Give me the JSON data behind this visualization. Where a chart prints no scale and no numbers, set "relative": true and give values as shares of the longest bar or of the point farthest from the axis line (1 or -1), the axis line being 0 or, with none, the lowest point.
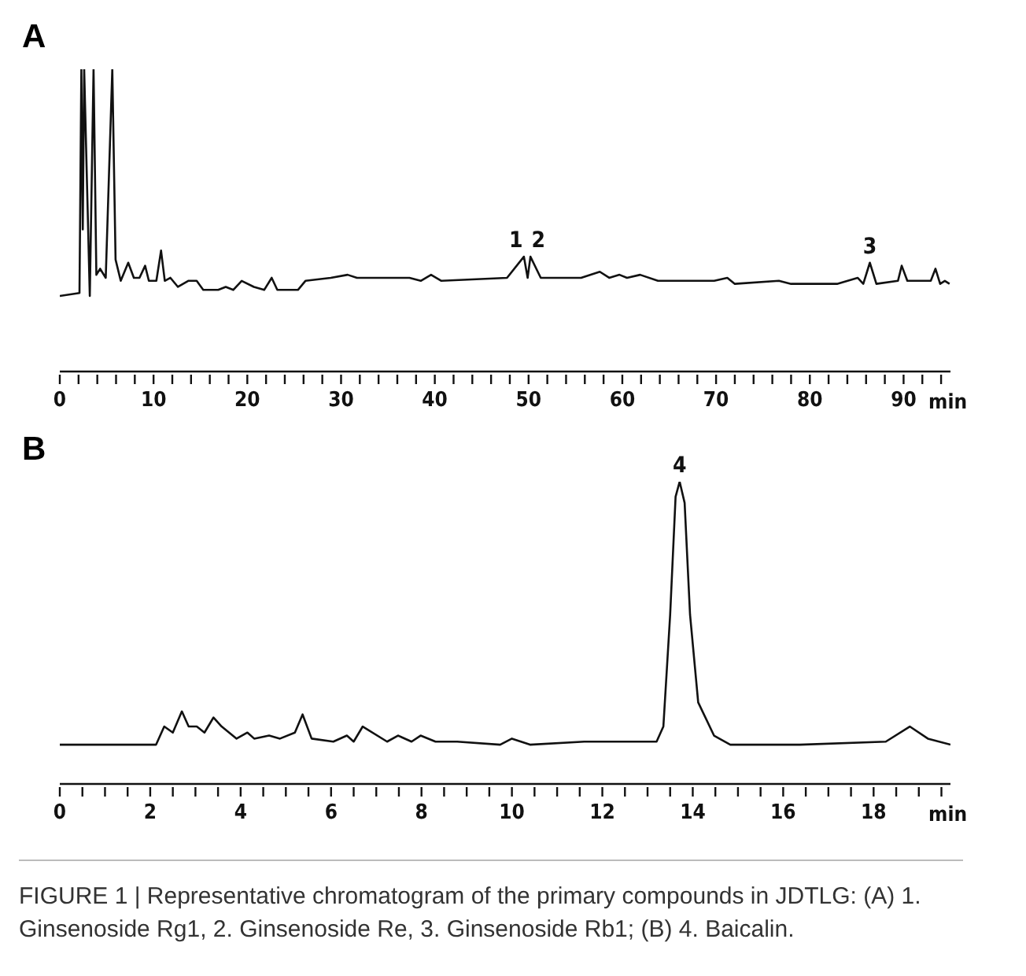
{
  "chart_data": [
    {
      "type": "line",
      "title": "A",
      "xlabel": "min",
      "relative": true,
      "xlim": [
        0,
        95
      ],
      "xticks": [
        0,
        {
          "value": 2,
          "label": null
        },
        {
          "value": 4,
          "label": null
        },
        {
          "value": 6,
          "label": null
        },
        {
          "value": 8,
          "label": null
        },
        10,
        {
          "value": 12,
          "label": null
        },
        {
          "value": 14,
          "label": null
        },
        {
          "value": 16,
          "label": null
        },
        {
          "value": 18,
          "label": null
        },
        20,
        {
          "value": 22,
          "label": null
        },
        {
          "value": 24,
          "label": null
        },
        {
          "value": 26,
          "label": null
        },
        {
          "value": 28,
          "label": null
        },
        30,
        {
          "value": 32,
          "label": null
        },
        {
          "value": 34,
          "label": null
        },
        {
          "value": 36,
          "label": null
        },
        {
          "value": 38,
          "label": null
        },
        40,
        {
          "value": 42,
          "label": null
        },
        {
          "value": 44,
          "label": null
        },
        {
          "value": 46,
          "label": null
        },
        {
          "value": 48,
          "label": null
        },
        50,
        {
          "value": 52,
          "label": null
        },
        {
          "value": 54,
          "label": null
        },
        {
          "value": 56,
          "label": null
        },
        {
          "value": 58,
          "label": null
        },
        60,
        {
          "value": 62,
          "label": null
        },
        {
          "value": 64,
          "label": null
        },
        {
          "value": 66,
          "label": null
        },
        {
          "value": 68,
          "label": null
        },
        70,
        {
          "value": 72,
          "label": null
        },
        {
          "value": 74,
          "label": null
        },
        {
          "value": 76,
          "label": null
        },
        {
          "value": 78,
          "label": null
        },
        80,
        {
          "value": 82,
          "label": null
        },
        {
          "value": 84,
          "label": null
        },
        {
          "value": 86,
          "label": null
        },
        {
          "value": 88,
          "label": null
        },
        90,
        {
          "value": 92,
          "label": null
        },
        {
          "value": 94,
          "label": null
        }
      ],
      "series": [
        {
          "color": "#111111",
          "x": [
            0,
            2.1,
            2.3,
            2.45,
            2.6,
            3.2,
            3.6,
            3.9,
            4.3,
            4.9,
            5.6,
            5.95,
            6.5,
            7.3,
            7.9,
            8.5,
            9.1,
            9.5,
            10.3,
            10.8,
            11.2,
            11.8,
            12.6,
            13.7,
            14.6,
            15.3,
            16.9,
            17.7,
            18.5,
            19.4,
            20.7,
            21.8,
            22.6,
            23.2,
            25.4,
            26.2,
            28.9,
            30.7,
            31.7,
            36.6,
            37.3,
            38.5,
            39.6,
            40.7,
            47.7,
            49.5,
            49.9,
            50.2,
            51.3,
            54.8,
            55.6,
            57.6,
            58.6,
            59.7,
            60.5,
            61.9,
            63.8,
            66.6,
            69.8,
            71.2,
            72.0,
            76.7,
            78.0,
            82.9,
            85.1,
            85.7,
            86.4,
            87.1,
            89.4,
            89.8,
            90.4,
            92.9,
            93.4,
            93.9,
            94.4,
            94.9
          ],
          "values": [
            0.25,
            0.26,
            1,
            0.47,
            1,
            0.25,
            1,
            0.32,
            0.34,
            0.31,
            1,
            0.37,
            0.3,
            0.36,
            0.31,
            0.31,
            0.35,
            0.3,
            0.3,
            0.4,
            0.3,
            0.31,
            0.28,
            0.3,
            0.3,
            0.27,
            0.27,
            0.28,
            0.27,
            0.3,
            0.28,
            0.27,
            0.31,
            0.27,
            0.27,
            0.3,
            0.31,
            0.32,
            0.31,
            0.31,
            0.31,
            0.3,
            0.32,
            0.3,
            0.31,
            0.38,
            0.31,
            0.38,
            0.31,
            0.31,
            0.31,
            0.33,
            0.31,
            0.32,
            0.31,
            0.32,
            0.3,
            0.3,
            0.3,
            0.31,
            0.29,
            0.3,
            0.29,
            0.29,
            0.31,
            0.29,
            0.36,
            0.29,
            0.3,
            0.35,
            0.3,
            0.3,
            0.34,
            0.29,
            0.3,
            0.29
          ]
        }
      ],
      "annotations": [
        {
          "text": "1",
          "x": 49.5,
          "y": 0.38
        },
        {
          "text": "2",
          "x": 50.2,
          "y": 0.38
        },
        {
          "text": "3",
          "x": 86.4,
          "y": 0.36
        }
      ]
    },
    {
      "type": "line",
      "title": "B",
      "xlabel": "min",
      "relative": true,
      "xlim": [
        0,
        19.7
      ],
      "xticks": [
        0,
        {
          "value": 0.5,
          "label": null
        },
        {
          "value": 1,
          "label": null
        },
        {
          "value": 1.5,
          "label": null
        },
        2,
        {
          "value": 2.5,
          "label": null
        },
        {
          "value": 3,
          "label": null
        },
        {
          "value": 3.5,
          "label": null
        },
        4,
        {
          "value": 4.5,
          "label": null
        },
        {
          "value": 5,
          "label": null
        },
        {
          "value": 5.5,
          "label": null
        },
        6,
        {
          "value": 6.5,
          "label": null
        },
        {
          "value": 7,
          "label": null
        },
        {
          "value": 7.5,
          "label": null
        },
        8,
        {
          "value": 8.5,
          "label": null
        },
        {
          "value": 9,
          "label": null
        },
        {
          "value": 9.5,
          "label": null
        },
        10,
        {
          "value": 10.5,
          "label": null
        },
        {
          "value": 11,
          "label": null
        },
        {
          "value": 11.5,
          "label": null
        },
        12,
        {
          "value": 12.5,
          "label": null
        },
        {
          "value": 13,
          "label": null
        },
        {
          "value": 13.5,
          "label": null
        },
        14,
        {
          "value": 14.5,
          "label": null
        },
        {
          "value": 15,
          "label": null
        },
        {
          "value": 15.5,
          "label": null
        },
        16,
        {
          "value": 16.5,
          "label": null
        },
        {
          "value": 17,
          "label": null
        },
        {
          "value": 17.5,
          "label": null
        },
        18,
        {
          "value": 18.5,
          "label": null
        },
        {
          "value": 19,
          "label": null
        },
        {
          "value": 19.5,
          "label": null
        }
      ],
      "series": [
        {
          "color": "#111111",
          "x": [
            0,
            2.13,
            2.31,
            2.5,
            2.7,
            2.85,
            3.03,
            3.2,
            3.4,
            3.58,
            3.91,
            4.15,
            4.3,
            4.63,
            4.87,
            5.2,
            5.37,
            5.57,
            6.05,
            6.35,
            6.5,
            6.7,
            7.24,
            7.48,
            7.78,
            7.98,
            8.31,
            8.79,
            9.74,
            10.0,
            10.4,
            11.6,
            12.6,
            13.2,
            13.35,
            13.5,
            13.62,
            13.71,
            13.82,
            13.94,
            14.12,
            14.47,
            14.83,
            16.37,
            18.27,
            18.8,
            19.2,
            19.7
          ],
          "values": [
            0.13,
            0.13,
            0.19,
            0.17,
            0.24,
            0.19,
            0.19,
            0.17,
            0.22,
            0.19,
            0.15,
            0.17,
            0.15,
            0.16,
            0.15,
            0.17,
            0.23,
            0.15,
            0.14,
            0.16,
            0.14,
            0.19,
            0.14,
            0.16,
            0.14,
            0.16,
            0.14,
            0.14,
            0.13,
            0.15,
            0.13,
            0.14,
            0.14,
            0.14,
            0.19,
            0.56,
            0.95,
            1,
            0.93,
            0.56,
            0.27,
            0.16,
            0.13,
            0.13,
            0.14,
            0.19,
            0.15,
            0.13
          ]
        }
      ],
      "annotations": [
        {
          "text": "4",
          "x": 13.71,
          "y": 1
        },
        "FIGURE 1 | Representative chromatogram of the primary compounds in JDTLG: (A) 1. Ginsenoside Rg1, 2. Ginsenoside Re, 3. Ginsenoside Rb1; (B) 4. Baicalin."
      ]
    }
  ]
}
